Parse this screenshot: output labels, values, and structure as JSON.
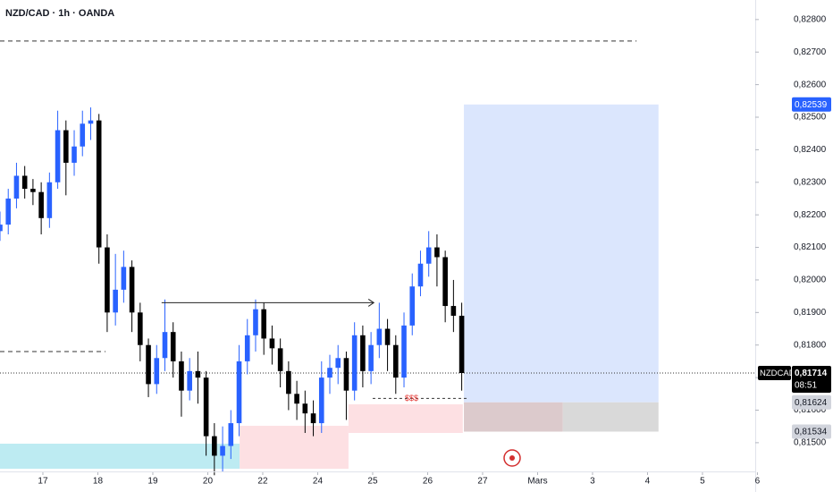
{
  "chart_data": {
    "type": "candlestick",
    "title": "NZD/CAD · 1h · OANDA",
    "up_color": "#2962ff",
    "down_color": "#000000",
    "ylim": [
      0.81409,
      0.8286
    ],
    "yticks": [
      {
        "value": 0.828,
        "label": "0,82800"
      },
      {
        "value": 0.827,
        "label": "0,82700"
      },
      {
        "value": 0.826,
        "label": "0,82600"
      },
      {
        "value": 0.825,
        "label": "0,82500"
      },
      {
        "value": 0.824,
        "label": "0,82400"
      },
      {
        "value": 0.823,
        "label": "0,82300"
      },
      {
        "value": 0.822,
        "label": "0,82200"
      },
      {
        "value": 0.821,
        "label": "0,82100"
      },
      {
        "value": 0.82,
        "label": "0,82000"
      },
      {
        "value": 0.819,
        "label": "0,81900"
      },
      {
        "value": 0.818,
        "label": "0,81800"
      },
      {
        "value": 0.817,
        "label": "0,81700"
      },
      {
        "value": 0.816,
        "label": "0,81600"
      },
      {
        "value": 0.815,
        "label": "0,81500"
      }
    ],
    "xlim": [
      -0.78,
      12.96
    ],
    "xticks": [
      {
        "value": 0,
        "label": "17"
      },
      {
        "value": 1,
        "label": "18"
      },
      {
        "value": 2,
        "label": "19"
      },
      {
        "value": 3,
        "label": "20"
      },
      {
        "value": 4,
        "label": "22"
      },
      {
        "value": 5,
        "label": "24"
      },
      {
        "value": 6,
        "label": "25"
      },
      {
        "value": 7,
        "label": "26"
      },
      {
        "value": 8,
        "label": "27"
      },
      {
        "value": 9,
        "label": "Mars"
      },
      {
        "value": 10,
        "label": "3"
      },
      {
        "value": 11,
        "label": "4"
      },
      {
        "value": 12,
        "label": "5"
      },
      {
        "value": 13,
        "label": "6"
      }
    ],
    "x": [
      -0.78,
      -0.63,
      -0.48,
      -0.33,
      -0.18,
      -0.03,
      0.12,
      0.27,
      0.42,
      0.57,
      0.72,
      0.87,
      1.02,
      1.17,
      1.32,
      1.47,
      1.62,
      1.77,
      1.92,
      2.07,
      2.22,
      2.37,
      2.52,
      2.67,
      2.82,
      2.97,
      3.12,
      3.27,
      3.42,
      3.57,
      3.72,
      3.87,
      4.02,
      4.17,
      4.32,
      4.47,
      4.62,
      4.77,
      4.92,
      5.07,
      5.22,
      5.37,
      5.52,
      5.67,
      5.82,
      5.97,
      6.12,
      6.27,
      6.42,
      6.57,
      6.72,
      6.87,
      7.02,
      7.17,
      7.32,
      7.47,
      7.62
    ],
    "ohlc": [
      [
        0.8215,
        0.8221,
        0.8212,
        0.8217
      ],
      [
        0.8217,
        0.8228,
        0.8214,
        0.8225
      ],
      [
        0.8225,
        0.8236,
        0.8222,
        0.8232
      ],
      [
        0.8232,
        0.8235,
        0.8225,
        0.8228
      ],
      [
        0.8228,
        0.8231,
        0.8223,
        0.8227
      ],
      [
        0.8227,
        0.823,
        0.8214,
        0.8219
      ],
      [
        0.8219,
        0.8233,
        0.8216,
        0.823
      ],
      [
        0.823,
        0.8252,
        0.8228,
        0.8246
      ],
      [
        0.8246,
        0.8249,
        0.8226,
        0.8236
      ],
      [
        0.8236,
        0.8246,
        0.8232,
        0.8241
      ],
      [
        0.8241,
        0.8252,
        0.8238,
        0.8248
      ],
      [
        0.8248,
        0.8253,
        0.8243,
        0.8249
      ],
      [
        0.8249,
        0.8251,
        0.8205,
        0.821
      ],
      [
        0.821,
        0.8214,
        0.8184,
        0.819
      ],
      [
        0.819,
        0.8208,
        0.8186,
        0.8197
      ],
      [
        0.8197,
        0.8209,
        0.8193,
        0.8204
      ],
      [
        0.8204,
        0.8206,
        0.8184,
        0.819
      ],
      [
        0.819,
        0.8193,
        0.8175,
        0.818
      ],
      [
        0.818,
        0.8182,
        0.8164,
        0.8168
      ],
      [
        0.8168,
        0.818,
        0.8165,
        0.8176
      ],
      [
        0.8176,
        0.8194,
        0.8172,
        0.8184
      ],
      [
        0.8184,
        0.8187,
        0.817,
        0.8175
      ],
      [
        0.8175,
        0.8178,
        0.8158,
        0.8166
      ],
      [
        0.8166,
        0.8176,
        0.8163,
        0.8172
      ],
      [
        0.8172,
        0.8178,
        0.8162,
        0.817
      ],
      [
        0.817,
        0.8172,
        0.8146,
        0.8152
      ],
      [
        0.8152,
        0.8156,
        0.814,
        0.8146
      ],
      [
        0.8146,
        0.8155,
        0.8141,
        0.8149
      ],
      [
        0.8149,
        0.816,
        0.8145,
        0.8156
      ],
      [
        0.8156,
        0.818,
        0.8152,
        0.8175
      ],
      [
        0.8175,
        0.8188,
        0.8171,
        0.8183
      ],
      [
        0.8183,
        0.8194,
        0.8178,
        0.8191
      ],
      [
        0.8191,
        0.8193,
        0.8177,
        0.8182
      ],
      [
        0.8182,
        0.8186,
        0.8174,
        0.8179
      ],
      [
        0.8179,
        0.8182,
        0.8167,
        0.8172
      ],
      [
        0.8172,
        0.8175,
        0.816,
        0.8165
      ],
      [
        0.8165,
        0.8169,
        0.8157,
        0.8162
      ],
      [
        0.8162,
        0.8166,
        0.8153,
        0.8159
      ],
      [
        0.8159,
        0.8163,
        0.8152,
        0.8156
      ],
      [
        0.8156,
        0.8175,
        0.8153,
        0.817
      ],
      [
        0.817,
        0.8177,
        0.8165,
        0.8173
      ],
      [
        0.8173,
        0.818,
        0.8168,
        0.8176
      ],
      [
        0.8176,
        0.8178,
        0.8157,
        0.8166
      ],
      [
        0.8166,
        0.8187,
        0.8163,
        0.8183
      ],
      [
        0.8183,
        0.8186,
        0.8167,
        0.8172
      ],
      [
        0.8172,
        0.8184,
        0.8168,
        0.818
      ],
      [
        0.818,
        0.8193,
        0.8176,
        0.8185
      ],
      [
        0.8185,
        0.8188,
        0.8172,
        0.818
      ],
      [
        0.818,
        0.8183,
        0.8165,
        0.817
      ],
      [
        0.817,
        0.819,
        0.8167,
        0.8186
      ],
      [
        0.8186,
        0.8202,
        0.8183,
        0.8198
      ],
      [
        0.8198,
        0.8209,
        0.8195,
        0.8205
      ],
      [
        0.8205,
        0.8215,
        0.8201,
        0.821
      ],
      [
        0.821,
        0.8214,
        0.8198,
        0.8207
      ],
      [
        0.8207,
        0.8209,
        0.8187,
        0.8192
      ],
      [
        0.8192,
        0.82,
        0.8184,
        0.8189
      ],
      [
        0.8189,
        0.8193,
        0.8166,
        0.81714
      ]
    ],
    "zones": [
      {
        "x": [
          -0.78,
          3.58
        ],
        "y": [
          0.8142,
          0.81497
        ],
        "color": "#bdebf2"
      },
      {
        "x": [
          3.58,
          5.56
        ],
        "y": [
          0.8142,
          0.81552
        ],
        "color": "#fde0e3"
      },
      {
        "x": [
          5.56,
          7.64
        ],
        "y": [
          0.8153,
          0.81618
        ],
        "color": "#fde0e3"
      },
      {
        "x": [
          7.66,
          11.2
        ],
        "y": [
          0.81624,
          0.82539
        ],
        "color": "#dbe6fd"
      },
      {
        "x": [
          7.66,
          9.46
        ],
        "y": [
          0.81534,
          0.81624
        ],
        "color": "#dccacc"
      },
      {
        "x": [
          9.46,
          11.2
        ],
        "y": [
          0.81534,
          0.81624
        ],
        "color": "#d9d9d9"
      }
    ],
    "dashed_levels": [
      {
        "x": [
          -0.78,
          10.8
        ],
        "y": 0.82734
      },
      {
        "x": [
          -0.78,
          1.14
        ],
        "y": 0.8178
      }
    ],
    "arrow_line": {
      "x": [
        2.16,
        6.02
      ],
      "y": 0.8193
    },
    "liquidity_line": {
      "x": [
        6.0,
        7.74
      ],
      "y": 0.81636,
      "label": "$$$"
    },
    "last_price": {
      "symbol": "NZDCAD",
      "value": 0.81714,
      "label": "0,81714",
      "countdown": "08:51"
    },
    "price_badges": [
      {
        "value": 0.82539,
        "label": "0,82539",
        "color": "#2962ff"
      },
      {
        "value": 0.81624,
        "label": "0,81624",
        "color": "#d1d4dc"
      },
      {
        "value": 0.81534,
        "label": "0,81534",
        "color": "#d1d4dc"
      }
    ]
  }
}
